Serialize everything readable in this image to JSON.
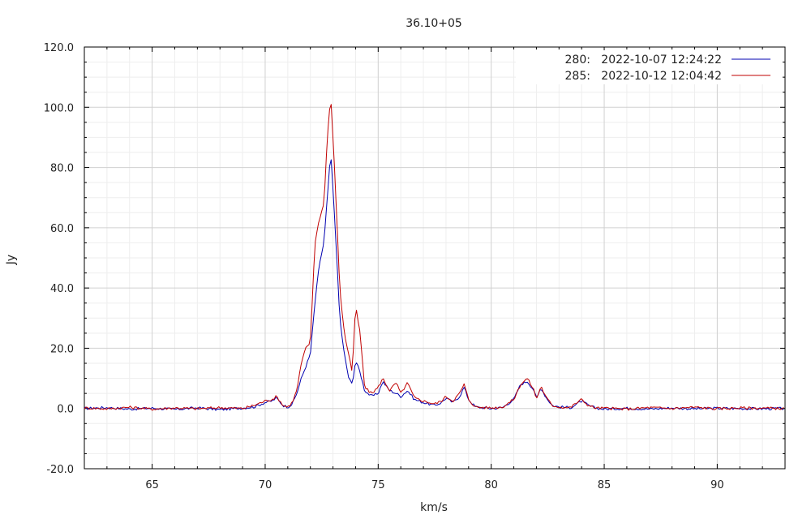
{
  "chart_data": {
    "type": "line",
    "title": "36.10+05",
    "xlabel": "km/s",
    "ylabel": "Jy",
    "xlim": [
      62,
      93
    ],
    "ylim": [
      -20,
      120
    ],
    "grid": true,
    "legend_position": "top-right",
    "x_ticks": [
      65,
      70,
      75,
      80,
      85,
      90
    ],
    "x_tick_labels": [
      "65",
      "70",
      "75",
      "80",
      "85",
      "90"
    ],
    "y_ticks": [
      -20,
      0,
      20,
      40,
      60,
      80,
      100,
      120
    ],
    "y_tick_labels": [
      "-20.0",
      "0.0",
      "20.0",
      "40.0",
      "60.0",
      "80.0",
      "100.0",
      "120.0"
    ],
    "series": [
      {
        "name": "280:   2022-10-07 12:24:22",
        "color": "#0000b0",
        "x": [
          62.0,
          63.0,
          64.0,
          65.0,
          66.0,
          67.0,
          68.0,
          69.0,
          69.5,
          70.0,
          70.3,
          70.5,
          70.8,
          71.0,
          71.2,
          71.4,
          71.6,
          71.8,
          72.0,
          72.2,
          72.4,
          72.6,
          72.75,
          72.9,
          73.1,
          73.3,
          73.5,
          73.7,
          73.85,
          74.0,
          74.2,
          74.4,
          74.7,
          75.0,
          75.2,
          75.5,
          75.8,
          76.0,
          76.3,
          76.6,
          77.0,
          77.5,
          77.8,
          78.0,
          78.3,
          78.6,
          78.8,
          79.0,
          79.3,
          80.0,
          80.5,
          81.0,
          81.3,
          81.6,
          81.9,
          82.0,
          82.2,
          82.4,
          82.7,
          83.0,
          83.5,
          83.8,
          84.0,
          84.3,
          84.6,
          85.0,
          86.0,
          87.0,
          88.0,
          89.0,
          90.0,
          91.0,
          92.0,
          93.0
        ],
        "y": [
          0.0,
          0.3,
          -0.2,
          0.1,
          -0.3,
          0.2,
          -0.4,
          0.2,
          0.5,
          2.0,
          2.5,
          3.5,
          1.0,
          0.5,
          1.5,
          5.0,
          10.0,
          14.0,
          18.0,
          35.0,
          48.0,
          55.0,
          70.0,
          85.0,
          60.0,
          30.0,
          18.0,
          10.0,
          8.0,
          16.0,
          12.0,
          6.0,
          4.0,
          5.0,
          9.0,
          6.0,
          5.0,
          4.0,
          6.0,
          3.0,
          2.0,
          1.0,
          2.0,
          3.5,
          2.0,
          4.0,
          7.0,
          3.0,
          0.5,
          0.0,
          0.3,
          3.0,
          8.0,
          9.0,
          6.0,
          3.0,
          7.0,
          4.0,
          1.0,
          0.5,
          0.3,
          1.5,
          2.5,
          1.0,
          0.2,
          -0.2,
          0.1,
          -0.2,
          0.2,
          -0.1,
          0.1,
          0.0,
          -0.1,
          0.0
        ]
      },
      {
        "name": "285:   2022-10-12 12:04:42",
        "color": "#c00000",
        "x": [
          62.0,
          63.0,
          64.0,
          65.0,
          66.0,
          67.0,
          68.0,
          69.0,
          69.5,
          70.0,
          70.3,
          70.5,
          70.8,
          71.0,
          71.2,
          71.4,
          71.6,
          71.8,
          72.0,
          72.2,
          72.4,
          72.6,
          72.75,
          72.9,
          73.1,
          73.3,
          73.5,
          73.7,
          73.85,
          74.0,
          74.2,
          74.4,
          74.7,
          75.0,
          75.2,
          75.5,
          75.8,
          76.0,
          76.3,
          76.6,
          77.0,
          77.5,
          77.8,
          78.0,
          78.3,
          78.6,
          78.8,
          79.0,
          79.3,
          80.0,
          80.5,
          81.0,
          81.3,
          81.6,
          81.9,
          82.0,
          82.2,
          82.4,
          82.7,
          83.0,
          83.5,
          83.8,
          84.0,
          84.3,
          84.6,
          85.0,
          86.0,
          87.0,
          88.0,
          89.0,
          90.0,
          91.0,
          92.0,
          93.0
        ],
        "y": [
          0.2,
          -0.1,
          0.4,
          -0.2,
          0.2,
          -0.1,
          0.3,
          0.0,
          1.0,
          2.5,
          3.0,
          4.0,
          1.0,
          0.5,
          2.0,
          6.0,
          15.0,
          20.0,
          22.0,
          55.0,
          63.0,
          68.0,
          90.0,
          104.0,
          75.0,
          40.0,
          25.0,
          18.0,
          12.0,
          34.0,
          25.0,
          7.0,
          5.0,
          7.0,
          10.0,
          6.0,
          8.5,
          5.0,
          8.5,
          3.5,
          2.5,
          1.5,
          2.5,
          4.0,
          2.5,
          5.0,
          8.0,
          3.0,
          0.5,
          0.2,
          0.5,
          3.0,
          8.0,
          10.0,
          6.0,
          3.0,
          7.5,
          4.0,
          1.0,
          0.5,
          0.3,
          2.0,
          3.0,
          1.0,
          0.2,
          0.1,
          -0.2,
          0.3,
          0.0,
          0.4,
          -0.1,
          0.2,
          0.1,
          0.0
        ]
      }
    ]
  }
}
